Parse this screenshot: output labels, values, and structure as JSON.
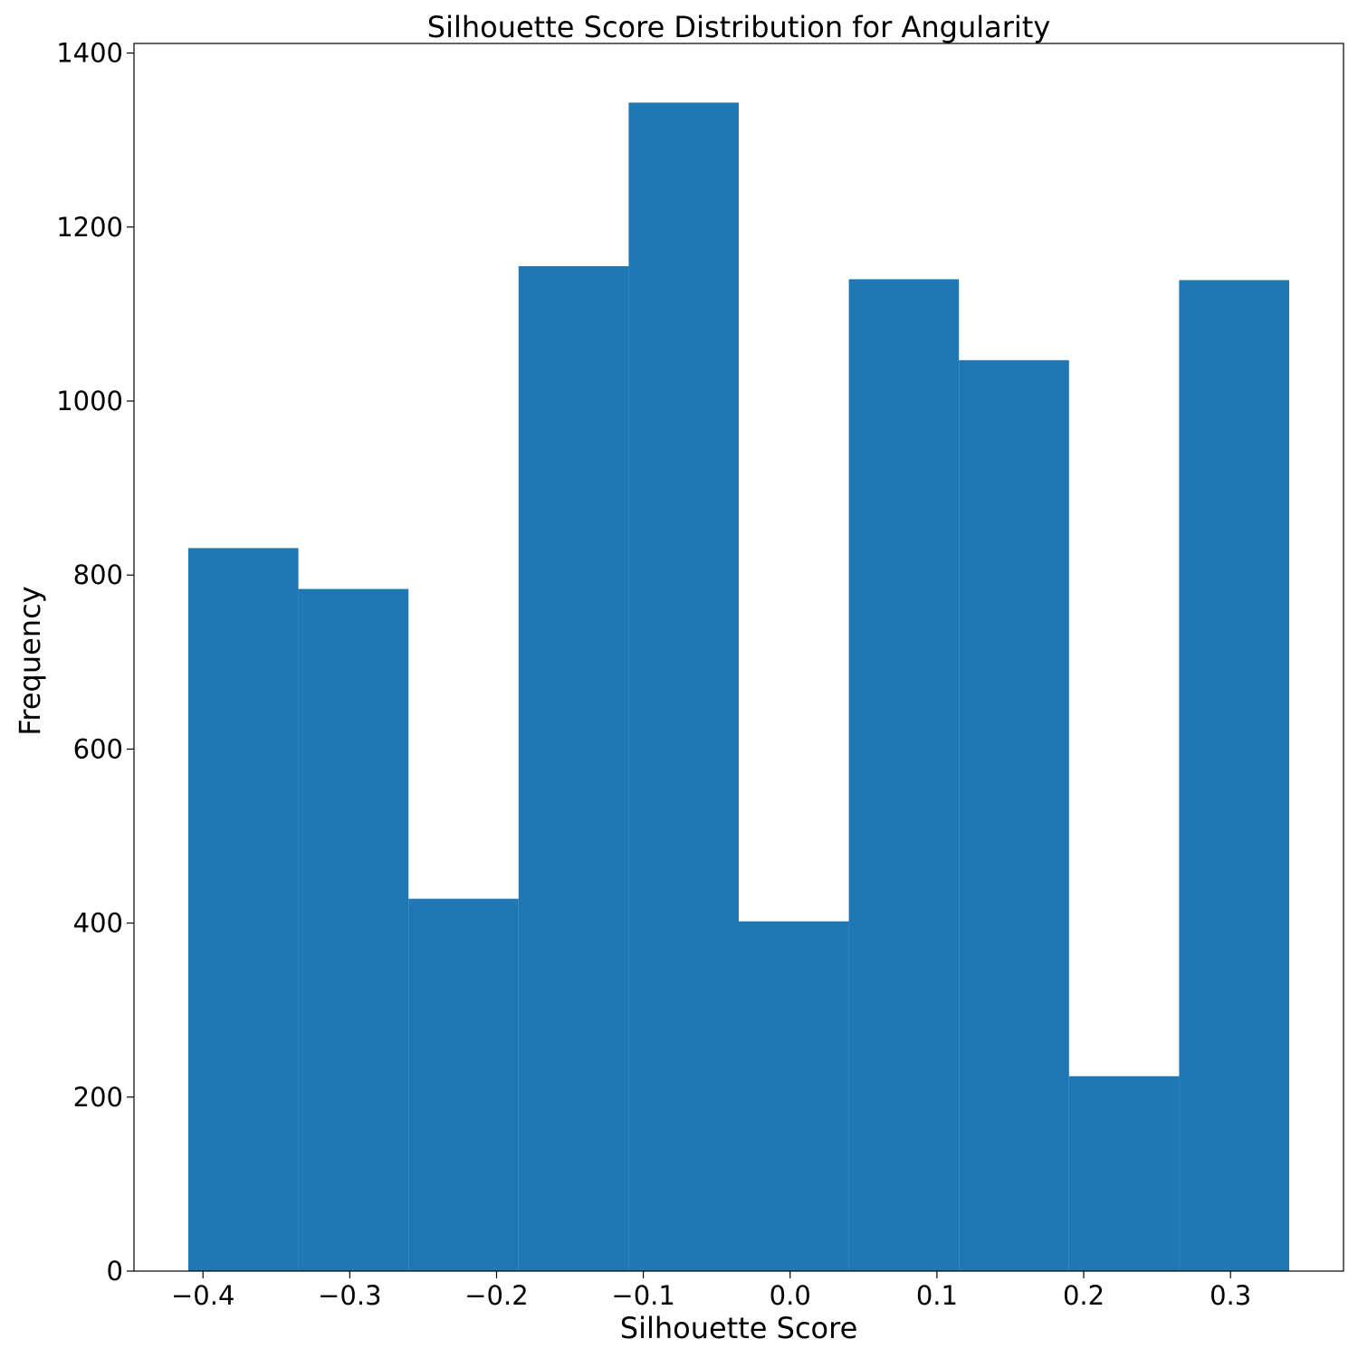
{
  "chart_data": {
    "type": "bar",
    "title": "Silhouette Score Distribution for Angularity",
    "xlabel": "Silhouette Score",
    "ylabel": "Frequency",
    "bar_color": "#1f77b4",
    "xlim": [
      -0.447,
      0.377
    ],
    "ylim": [
      0,
      1411
    ],
    "xticks": [
      {
        "value": -0.4,
        "label": "−0.4"
      },
      {
        "value": -0.3,
        "label": "−0.3"
      },
      {
        "value": -0.2,
        "label": "−0.2"
      },
      {
        "value": -0.1,
        "label": "−0.1"
      },
      {
        "value": 0.0,
        "label": "0.0"
      },
      {
        "value": 0.1,
        "label": "0.1"
      },
      {
        "value": 0.2,
        "label": "0.2"
      },
      {
        "value": 0.3,
        "label": "0.3"
      }
    ],
    "yticks": [
      {
        "value": 0,
        "label": "0"
      },
      {
        "value": 200,
        "label": "200"
      },
      {
        "value": 400,
        "label": "400"
      },
      {
        "value": 600,
        "label": "600"
      },
      {
        "value": 800,
        "label": "800"
      },
      {
        "value": 1000,
        "label": "1000"
      },
      {
        "value": 1200,
        "label": "1200"
      },
      {
        "value": 1400,
        "label": "1400"
      }
    ],
    "bins": [
      {
        "start": -0.41,
        "end": -0.335,
        "count": 831
      },
      {
        "start": -0.335,
        "end": -0.26,
        "count": 784
      },
      {
        "start": -0.26,
        "end": -0.185,
        "count": 428
      },
      {
        "start": -0.185,
        "end": -0.11,
        "count": 1155
      },
      {
        "start": -0.11,
        "end": -0.035,
        "count": 1343
      },
      {
        "start": -0.035,
        "end": 0.04,
        "count": 402
      },
      {
        "start": 0.04,
        "end": 0.115,
        "count": 1140
      },
      {
        "start": 0.115,
        "end": 0.19,
        "count": 1047
      },
      {
        "start": 0.19,
        "end": 0.265,
        "count": 224
      },
      {
        "start": 0.265,
        "end": 0.34,
        "count": 1139
      }
    ]
  }
}
